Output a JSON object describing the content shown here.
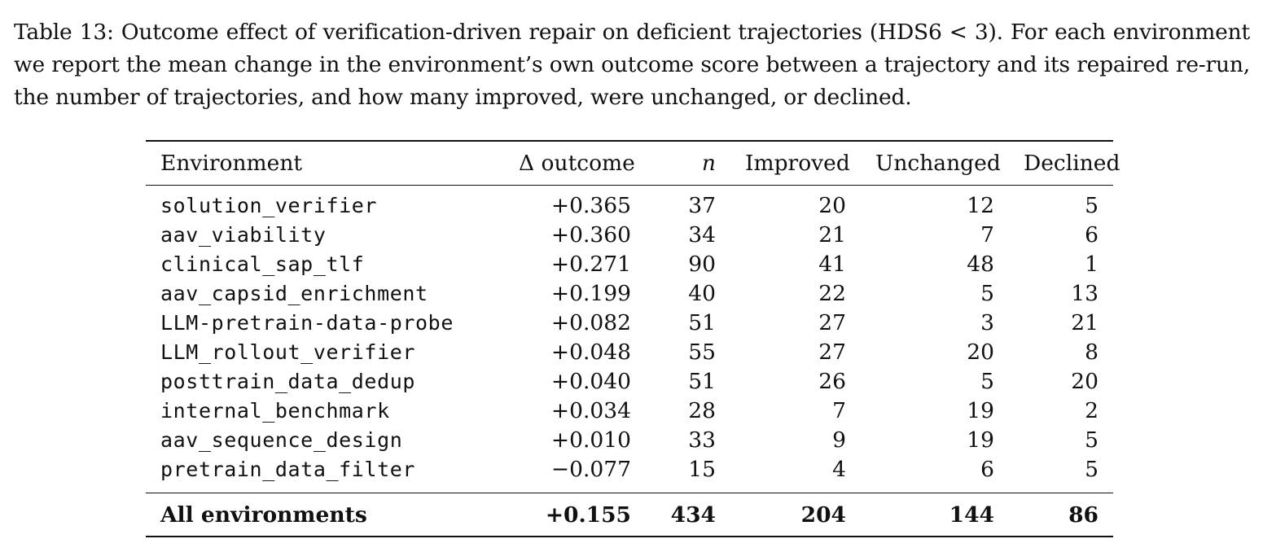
{
  "caption": "Table 13: Outcome effect of verification-driven repair on deficient trajectories (HDS6 < 3). For each environment we report the mean change in the environment’s own outcome score between a trajectory and its repaired re-run, the number of trajectories, and how many improved, were unchanged, or declined.",
  "table": {
    "headers": {
      "environment": "Environment",
      "delta": "Δ outcome",
      "n": "n",
      "improved": "Improved",
      "unchanged": "Unchanged",
      "declined": "Declined"
    },
    "rows": [
      {
        "environment": "solution_verifier",
        "delta": "+0.365",
        "n": "37",
        "improved": "20",
        "unchanged": "12",
        "declined": "5"
      },
      {
        "environment": "aav_viability",
        "delta": "+0.360",
        "n": "34",
        "improved": "21",
        "unchanged": "7",
        "declined": "6"
      },
      {
        "environment": "clinical_sap_tlf",
        "delta": "+0.271",
        "n": "90",
        "improved": "41",
        "unchanged": "48",
        "declined": "1"
      },
      {
        "environment": "aav_capsid_enrichment",
        "delta": "+0.199",
        "n": "40",
        "improved": "22",
        "unchanged": "5",
        "declined": "13"
      },
      {
        "environment": "LLM-pretrain-data-probe",
        "delta": "+0.082",
        "n": "51",
        "improved": "27",
        "unchanged": "3",
        "declined": "21"
      },
      {
        "environment": "LLM_rollout_verifier",
        "delta": "+0.048",
        "n": "55",
        "improved": "27",
        "unchanged": "20",
        "declined": "8"
      },
      {
        "environment": "posttrain_data_dedup",
        "delta": "+0.040",
        "n": "51",
        "improved": "26",
        "unchanged": "5",
        "declined": "20"
      },
      {
        "environment": "internal_benchmark",
        "delta": "+0.034",
        "n": "28",
        "improved": "7",
        "unchanged": "19",
        "declined": "2"
      },
      {
        "environment": "aav_sequence_design",
        "delta": "+0.010",
        "n": "33",
        "improved": "9",
        "unchanged": "19",
        "declined": "5"
      },
      {
        "environment": "pretrain_data_filter",
        "delta": "−0.077",
        "n": "15",
        "improved": "4",
        "unchanged": "6",
        "declined": "5"
      }
    ],
    "total": {
      "environment": "All environments",
      "delta": "+0.155",
      "n": "434",
      "improved": "204",
      "unchanged": "144",
      "declined": "86"
    }
  }
}
